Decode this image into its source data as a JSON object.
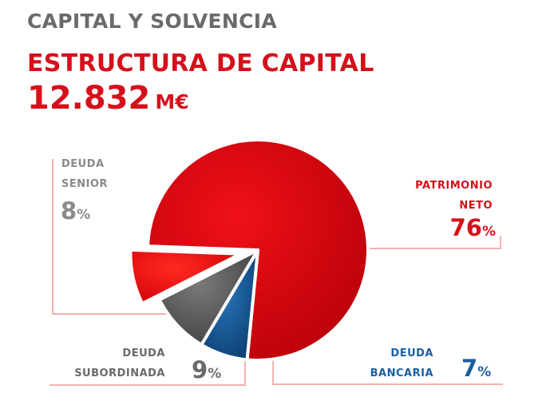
{
  "header": {
    "section_title": "CAPITAL Y SOLVENCIA"
  },
  "chart_data": {
    "type": "pie",
    "title": "ESTRUCTURA DE CAPITAL",
    "total_value": "12.832",
    "total_unit": "M€",
    "percent_symbol": "%",
    "slices": [
      {
        "name_lines": [
          "PATRIMONIO",
          "NETO"
        ],
        "value": 76,
        "color": "#d9050f"
      },
      {
        "name_lines": [
          "DEUDA",
          "BANCARIA"
        ],
        "value": 7,
        "color": "#14548f"
      },
      {
        "name_lines": [
          "DEUDA",
          "SUBORDINADA"
        ],
        "value": 9,
        "color": "#5a5a5a"
      },
      {
        "name_lines": [
          "DEUDA",
          "SENIOR"
        ],
        "value": 8,
        "color": "#f20808"
      }
    ]
  },
  "colors": {
    "accent": "#d6101b",
    "heading_grey": "#6a6a6a",
    "leader_line": "#f3b2b2"
  }
}
